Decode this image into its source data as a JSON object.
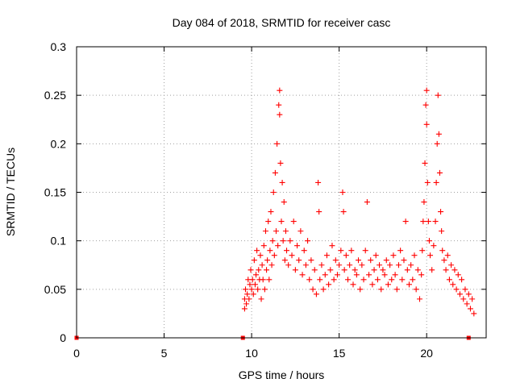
{
  "chart_data": {
    "type": "scatter",
    "title": "Day 084 of 2018, SRMTID for receiver casc",
    "xlabel": "GPS time / hours",
    "ylabel": "SRMTID / TECUs",
    "xlim": [
      0,
      23.4
    ],
    "ylim": [
      0,
      0.3
    ],
    "x_ticks": [
      0,
      5,
      10,
      15,
      20
    ],
    "x_tick_labels": [
      "0",
      "5",
      "10",
      "15",
      "20"
    ],
    "y_ticks": [
      0,
      0.05,
      0.1,
      0.15,
      0.2,
      0.25,
      0.3
    ],
    "y_tick_labels": [
      "0",
      "0.05",
      "0.1",
      "0.15",
      "0.2",
      "0.25",
      "0.3"
    ],
    "grid": true,
    "marker": "+",
    "color": "#ff0000",
    "zero_markers_x": [
      0.0,
      9.5,
      22.4
    ],
    "series": [
      {
        "name": "SRMTID",
        "points": [
          [
            9.6,
            0.03
          ],
          [
            9.6,
            0.04
          ],
          [
            9.65,
            0.05
          ],
          [
            9.7,
            0.035
          ],
          [
            9.75,
            0.045
          ],
          [
            9.8,
            0.06
          ],
          [
            9.85,
            0.04
          ],
          [
            9.9,
            0.055
          ],
          [
            9.95,
            0.07
          ],
          [
            10.0,
            0.05
          ],
          [
            10.05,
            0.06
          ],
          [
            10.1,
            0.045
          ],
          [
            10.15,
            0.08
          ],
          [
            10.2,
            0.055
          ],
          [
            10.25,
            0.065
          ],
          [
            10.3,
            0.09
          ],
          [
            10.35,
            0.05
          ],
          [
            10.4,
            0.07
          ],
          [
            10.45,
            0.06
          ],
          [
            10.5,
            0.085
          ],
          [
            10.55,
            0.04
          ],
          [
            10.6,
            0.075
          ],
          [
            10.65,
            0.06
          ],
          [
            10.7,
            0.095
          ],
          [
            10.75,
            0.05
          ],
          [
            10.8,
            0.11
          ],
          [
            10.85,
            0.07
          ],
          [
            10.9,
            0.08
          ],
          [
            10.95,
            0.12
          ],
          [
            11.0,
            0.06
          ],
          [
            11.05,
            0.09
          ],
          [
            11.1,
            0.13
          ],
          [
            11.15,
            0.075
          ],
          [
            11.2,
            0.1
          ],
          [
            11.25,
            0.15
          ],
          [
            11.3,
            0.085
          ],
          [
            11.35,
            0.17
          ],
          [
            11.4,
            0.11
          ],
          [
            11.45,
            0.2
          ],
          [
            11.5,
            0.095
          ],
          [
            11.55,
            0.24
          ],
          [
            11.6,
            0.255
          ],
          [
            11.6,
            0.23
          ],
          [
            11.65,
            0.18
          ],
          [
            11.7,
            0.12
          ],
          [
            11.75,
            0.16
          ],
          [
            11.8,
            0.1
          ],
          [
            11.85,
            0.14
          ],
          [
            11.9,
            0.08
          ],
          [
            11.95,
            0.11
          ],
          [
            12.0,
            0.09
          ],
          [
            12.1,
            0.075
          ],
          [
            12.2,
            0.1
          ],
          [
            12.3,
            0.085
          ],
          [
            12.4,
            0.12
          ],
          [
            12.5,
            0.07
          ],
          [
            12.6,
            0.095
          ],
          [
            12.7,
            0.08
          ],
          [
            12.8,
            0.11
          ],
          [
            12.9,
            0.065
          ],
          [
            13.0,
            0.09
          ],
          [
            13.1,
            0.075
          ],
          [
            13.2,
            0.1
          ],
          [
            13.3,
            0.06
          ],
          [
            13.4,
            0.08
          ],
          [
            13.5,
            0.05
          ],
          [
            13.6,
            0.07
          ],
          [
            13.7,
            0.045
          ],
          [
            13.8,
            0.16
          ],
          [
            13.85,
            0.13
          ],
          [
            13.9,
            0.06
          ],
          [
            14.0,
            0.075
          ],
          [
            14.1,
            0.05
          ],
          [
            14.2,
            0.065
          ],
          [
            14.3,
            0.085
          ],
          [
            14.4,
            0.055
          ],
          [
            14.5,
            0.07
          ],
          [
            14.6,
            0.095
          ],
          [
            14.7,
            0.06
          ],
          [
            14.8,
            0.08
          ],
          [
            14.9,
            0.065
          ],
          [
            15.0,
            0.075
          ],
          [
            15.1,
            0.09
          ],
          [
            15.2,
            0.15
          ],
          [
            15.25,
            0.13
          ],
          [
            15.3,
            0.07
          ],
          [
            15.4,
            0.085
          ],
          [
            15.5,
            0.06
          ],
          [
            15.6,
            0.075
          ],
          [
            15.7,
            0.09
          ],
          [
            15.8,
            0.055
          ],
          [
            15.9,
            0.07
          ],
          [
            16.0,
            0.065
          ],
          [
            16.1,
            0.08
          ],
          [
            16.2,
            0.05
          ],
          [
            16.3,
            0.075
          ],
          [
            16.4,
            0.06
          ],
          [
            16.5,
            0.09
          ],
          [
            16.6,
            0.14
          ],
          [
            16.7,
            0.065
          ],
          [
            16.8,
            0.08
          ],
          [
            16.9,
            0.055
          ],
          [
            17.0,
            0.07
          ],
          [
            17.1,
            0.085
          ],
          [
            17.2,
            0.06
          ],
          [
            17.3,
            0.075
          ],
          [
            17.4,
            0.05
          ],
          [
            17.5,
            0.07
          ],
          [
            17.6,
            0.065
          ],
          [
            17.7,
            0.08
          ],
          [
            17.8,
            0.055
          ],
          [
            17.9,
            0.075
          ],
          [
            18.0,
            0.06
          ],
          [
            18.1,
            0.085
          ],
          [
            18.2,
            0.065
          ],
          [
            18.3,
            0.05
          ],
          [
            18.4,
            0.075
          ],
          [
            18.5,
            0.09
          ],
          [
            18.6,
            0.06
          ],
          [
            18.7,
            0.08
          ],
          [
            18.8,
            0.12
          ],
          [
            18.9,
            0.07
          ],
          [
            19.0,
            0.055
          ],
          [
            19.1,
            0.075
          ],
          [
            19.2,
            0.06
          ],
          [
            19.3,
            0.085
          ],
          [
            19.4,
            0.05
          ],
          [
            19.5,
            0.07
          ],
          [
            19.6,
            0.04
          ],
          [
            19.7,
            0.065
          ],
          [
            19.75,
            0.09
          ],
          [
            19.8,
            0.12
          ],
          [
            19.85,
            0.14
          ],
          [
            19.9,
            0.18
          ],
          [
            19.95,
            0.24
          ],
          [
            20.0,
            0.255
          ],
          [
            20.0,
            0.22
          ],
          [
            20.05,
            0.16
          ],
          [
            20.1,
            0.12
          ],
          [
            20.15,
            0.1
          ],
          [
            20.2,
            0.085
          ],
          [
            20.3,
            0.07
          ],
          [
            20.4,
            0.095
          ],
          [
            20.5,
            0.12
          ],
          [
            20.55,
            0.16
          ],
          [
            20.6,
            0.2
          ],
          [
            20.65,
            0.25
          ],
          [
            20.7,
            0.21
          ],
          [
            20.75,
            0.17
          ],
          [
            20.8,
            0.13
          ],
          [
            20.85,
            0.11
          ],
          [
            20.9,
            0.09
          ],
          [
            21.0,
            0.08
          ],
          [
            21.1,
            0.07
          ],
          [
            21.2,
            0.085
          ],
          [
            21.3,
            0.06
          ],
          [
            21.4,
            0.075
          ],
          [
            21.5,
            0.055
          ],
          [
            21.6,
            0.07
          ],
          [
            21.7,
            0.05
          ],
          [
            21.8,
            0.065
          ],
          [
            21.9,
            0.045
          ],
          [
            22.0,
            0.06
          ],
          [
            22.1,
            0.04
          ],
          [
            22.2,
            0.05
          ],
          [
            22.3,
            0.035
          ],
          [
            22.4,
            0.045
          ],
          [
            22.5,
            0.03
          ],
          [
            22.6,
            0.04
          ],
          [
            22.7,
            0.025
          ]
        ]
      }
    ]
  }
}
